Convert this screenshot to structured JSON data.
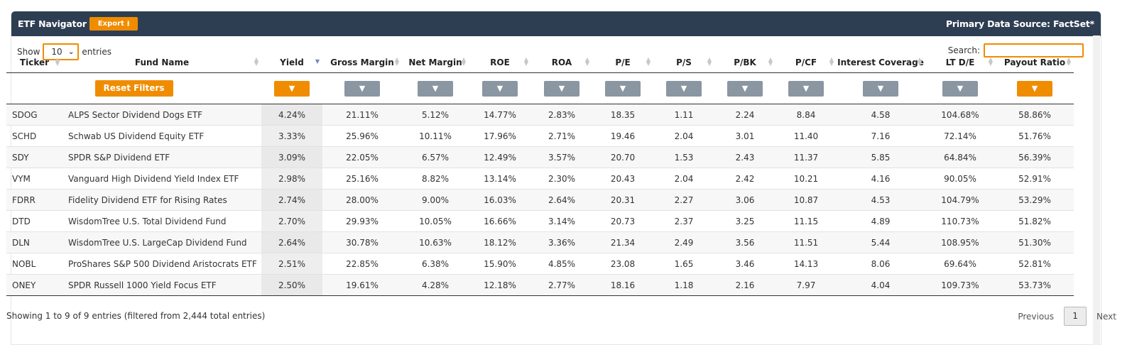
{
  "header": {
    "title": "ETF Navigator",
    "export_label": "Export",
    "export_icon": "download-icon",
    "source": "Primary Data Source: FactSet*"
  },
  "controls": {
    "show_label": "Show",
    "entries_value": "10",
    "entries_label": "entries",
    "search_label": "Search:",
    "search_value": ""
  },
  "columns": [
    "Ticker",
    "Fund Name",
    "Yield",
    "Gross Margin",
    "Net Margin",
    "ROE",
    "ROA",
    "P/E",
    "P/S",
    "P/BK",
    "P/CF",
    "Interest Coverage",
    "LT D/E",
    "Payout Ratio"
  ],
  "filters": {
    "reset_label": "Reset Filters",
    "icon": "filter-icon"
  },
  "rows": [
    [
      "SDOG",
      "ALPS Sector Dividend Dogs ETF",
      "4.24%",
      "21.11%",
      "5.12%",
      "14.77%",
      "2.83%",
      "18.35",
      "1.11",
      "2.24",
      "8.84",
      "4.58",
      "104.68%",
      "58.86%"
    ],
    [
      "SCHD",
      "Schwab US Dividend Equity ETF",
      "3.33%",
      "25.96%",
      "10.11%",
      "17.96%",
      "2.71%",
      "19.46",
      "2.04",
      "3.01",
      "11.40",
      "7.16",
      "72.14%",
      "51.76%"
    ],
    [
      "SDY",
      "SPDR S&P Dividend ETF",
      "3.09%",
      "22.05%",
      "6.57%",
      "12.49%",
      "3.57%",
      "20.70",
      "1.53",
      "2.43",
      "11.37",
      "5.85",
      "64.84%",
      "56.39%"
    ],
    [
      "VYM",
      "Vanguard High Dividend Yield Index ETF",
      "2.98%",
      "25.16%",
      "8.82%",
      "13.14%",
      "2.30%",
      "20.43",
      "2.04",
      "2.42",
      "10.21",
      "4.16",
      "90.05%",
      "52.91%"
    ],
    [
      "FDRR",
      "Fidelity Dividend ETF for Rising Rates",
      "2.74%",
      "28.00%",
      "9.00%",
      "16.03%",
      "2.64%",
      "20.31",
      "2.27",
      "3.06",
      "10.87",
      "4.53",
      "104.79%",
      "53.29%"
    ],
    [
      "DTD",
      "WisdomTree U.S. Total Dividend Fund",
      "2.70%",
      "29.93%",
      "10.05%",
      "16.66%",
      "3.14%",
      "20.73",
      "2.37",
      "3.25",
      "11.15",
      "4.89",
      "110.73%",
      "51.82%"
    ],
    [
      "DLN",
      "WisdomTree U.S. LargeCap Dividend Fund",
      "2.64%",
      "30.78%",
      "10.63%",
      "18.12%",
      "3.36%",
      "21.34",
      "2.49",
      "3.56",
      "11.51",
      "5.44",
      "108.95%",
      "51.30%"
    ],
    [
      "NOBL",
      "ProShares S&P 500 Dividend Aristocrats ETF",
      "2.51%",
      "22.85%",
      "6.38%",
      "15.90%",
      "4.85%",
      "23.08",
      "1.65",
      "3.46",
      "14.13",
      "8.06",
      "69.64%",
      "52.81%"
    ],
    [
      "ONEY",
      "SPDR Russell 1000 Yield Focus ETF",
      "2.50%",
      "19.61%",
      "4.28%",
      "12.18%",
      "2.77%",
      "18.16",
      "1.18",
      "2.16",
      "7.97",
      "4.04",
      "109.73%",
      "53.73%"
    ]
  ],
  "footer": {
    "info": "Showing 1 to 9 of 9 entries (filtered from 2,444 total entries)",
    "previous": "Previous",
    "page": "1",
    "next": "Next"
  }
}
